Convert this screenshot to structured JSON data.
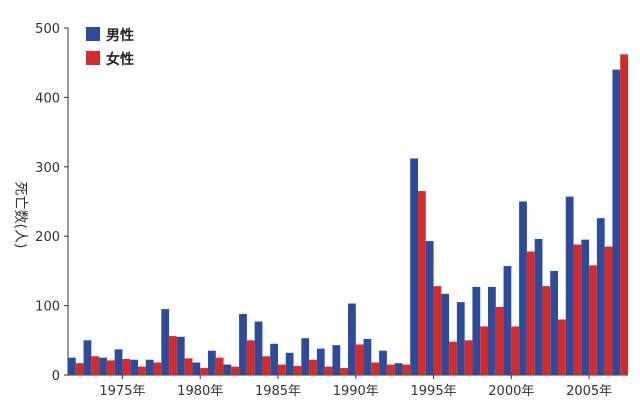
{
  "chart_data": {
    "type": "bar",
    "ylabel": "死亡数(人)",
    "ylim": [
      0,
      500
    ],
    "yticks": [
      0,
      100,
      200,
      300,
      400,
      500
    ],
    "x": [
      1972,
      1973,
      1974,
      1975,
      1976,
      1977,
      1978,
      1979,
      1980,
      1981,
      1982,
      1983,
      1984,
      1985,
      1986,
      1987,
      1988,
      1989,
      1990,
      1991,
      1992,
      1993,
      1994,
      1995,
      1996,
      1997,
      1998,
      1999,
      2000,
      2001,
      2002,
      2003,
      2004,
      2005,
      2006,
      2007
    ],
    "xtick_labels": [
      "1975年",
      "1980年",
      "1985年",
      "1990年",
      "1995年",
      "2000年",
      "2005年"
    ],
    "xtick_years": [
      1975,
      1980,
      1985,
      1990,
      1995,
      2000,
      2005
    ],
    "legend_position": "top-left",
    "series": [
      {
        "name": "男性",
        "color": "#2e4a9a",
        "values": [
          25,
          50,
          25,
          37,
          22,
          22,
          95,
          55,
          18,
          35,
          15,
          88,
          77,
          45,
          32,
          53,
          38,
          43,
          103,
          52,
          35,
          17,
          312,
          193,
          117,
          105,
          127,
          127,
          157,
          250,
          196,
          150,
          257,
          195,
          226,
          440
        ]
      },
      {
        "name": "女性",
        "color": "#d42a2a",
        "values": [
          17,
          27,
          21,
          23,
          12,
          18,
          56,
          24,
          10,
          25,
          12,
          50,
          27,
          15,
          13,
          22,
          12,
          10,
          44,
          18,
          15,
          15,
          265,
          128,
          48,
          50,
          70,
          98,
          70,
          178,
          128,
          80,
          188,
          158,
          185,
          462
        ]
      }
    ]
  }
}
